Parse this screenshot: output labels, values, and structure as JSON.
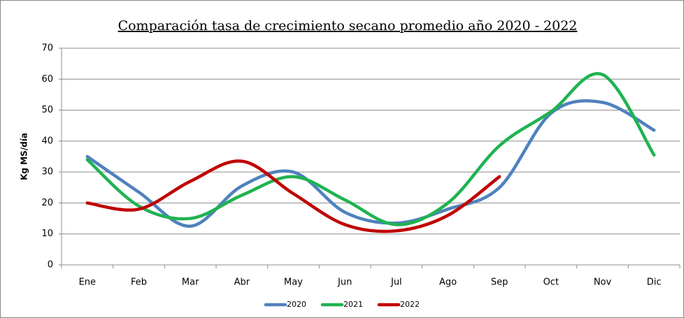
{
  "chart_data": {
    "type": "line",
    "title": "Comparación tasa de crecimiento secano promedio año 2020 - 2022",
    "y_label": "Kg MS/día",
    "categories": [
      "Ene",
      "Feb",
      "Mar",
      "Abr",
      "May",
      "Jun",
      "Jul",
      "Ago",
      "Sep",
      "Oct",
      "Nov",
      "Dic"
    ],
    "series": [
      {
        "name": "2020",
        "color": "#4f81bd",
        "values": [
          35,
          23.5,
          12.5,
          25.5,
          30,
          17,
          13.5,
          18,
          25,
          49,
          52.5,
          43.5
        ]
      },
      {
        "name": "2021",
        "color": "#1fb350",
        "values": [
          34,
          19,
          15,
          22.5,
          28.5,
          21,
          13,
          20,
          38.5,
          49.5,
          61.5,
          35.5
        ]
      },
      {
        "name": "2022",
        "color": "#c00000",
        "values": [
          20,
          18,
          27,
          33.5,
          23,
          13,
          11,
          16,
          28.5,
          null,
          null,
          null
        ]
      }
    ],
    "ylim": [
      0,
      70
    ],
    "yticks": [
      0,
      10,
      20,
      30,
      40,
      50,
      60,
      70
    ],
    "grid": true,
    "smooth": true,
    "legend": "bottom"
  }
}
